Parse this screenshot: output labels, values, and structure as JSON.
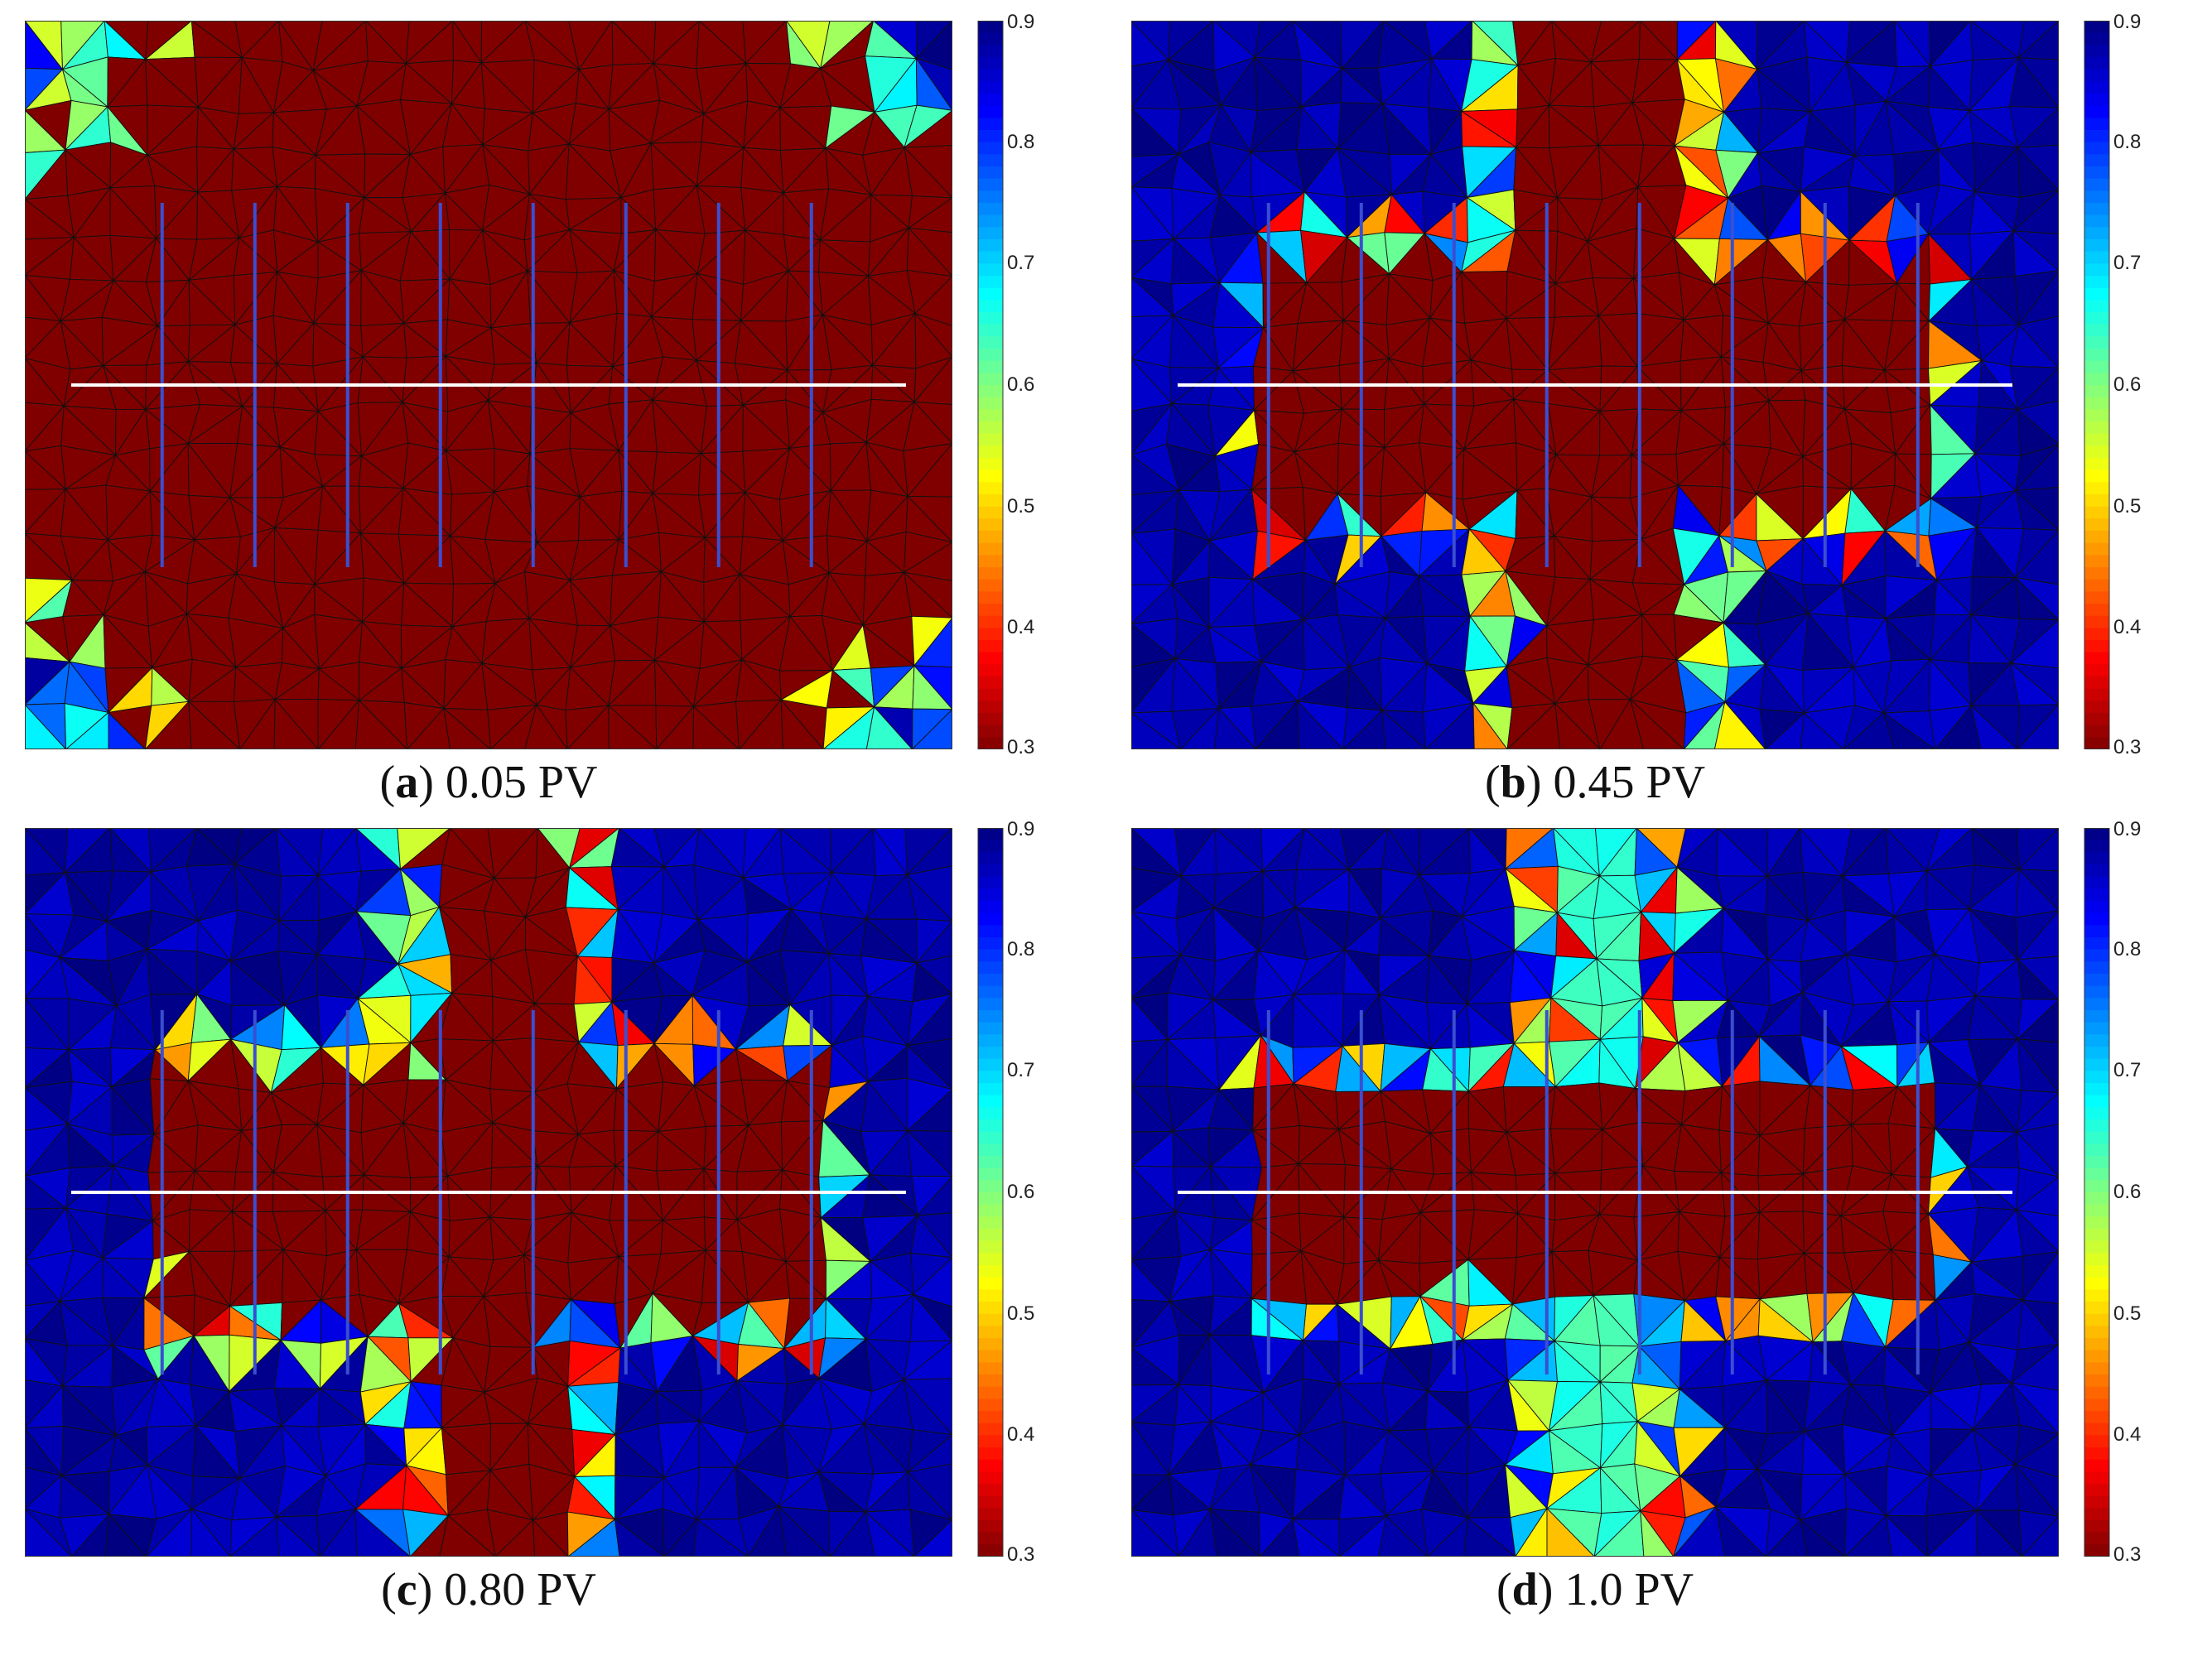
{
  "figure": {
    "panels": [
      {
        "letter": "a",
        "caption_rest": " 0.05 PV",
        "pv": 0.05
      },
      {
        "letter": "b",
        "caption_rest": " 0.45 PV",
        "pv": 0.45
      },
      {
        "letter": "c",
        "caption_rest": " 0.80 PV",
        "pv": 0.8
      },
      {
        "letter": "d",
        "caption_rest": " 1.0 PV",
        "pv": 1.0
      }
    ]
  },
  "colors": {
    "colormap": "jet",
    "mesh_line": "#111111",
    "well_line": "#3a4fd0",
    "section_line": "#ffffff"
  },
  "chart_data": [
    {
      "type": "heatmap",
      "panel": "a",
      "title": "",
      "xlabel": "",
      "ylabel": "",
      "colorbar": {
        "min": 0.3,
        "max": 0.9,
        "ticks": [
          "0.9",
          "0.8",
          "0.7",
          "0.6",
          "0.5",
          "0.4",
          "0.3"
        ]
      },
      "field": "red (~0.3) over almost the whole triangular mesh; blue/green/yellow patches only at the four corners"
    },
    {
      "type": "heatmap",
      "panel": "b",
      "title": "",
      "xlabel": "",
      "ylabel": "",
      "colorbar": {
        "min": 0.3,
        "max": 0.9,
        "ticks": [
          "0.9",
          "0.8",
          "0.7",
          "0.6",
          "0.5",
          "0.4",
          "0.3"
        ]
      },
      "field": "blue (~0.9) background; red (~0.3) cross-shaped region: vertical band plus central horizontal block, multicolored front"
    },
    {
      "type": "heatmap",
      "panel": "c",
      "title": "",
      "xlabel": "",
      "ylabel": "",
      "colorbar": {
        "min": 0.3,
        "max": 0.9,
        "ticks": [
          "0.9",
          "0.8",
          "0.7",
          "0.6",
          "0.5",
          "0.4",
          "0.3"
        ]
      },
      "field": "blue background; red cross-shaped region, narrower than (b)"
    },
    {
      "type": "heatmap",
      "panel": "d",
      "title": "",
      "xlabel": "",
      "ylabel": "",
      "colorbar": {
        "min": 0.3,
        "max": 0.9,
        "ticks": [
          "0.9",
          "0.8",
          "0.7",
          "0.6",
          "0.5",
          "0.4",
          "0.3"
        ]
      },
      "field": "blue background; red central horizontal block; vertical band now cyan (~0.65)"
    }
  ]
}
